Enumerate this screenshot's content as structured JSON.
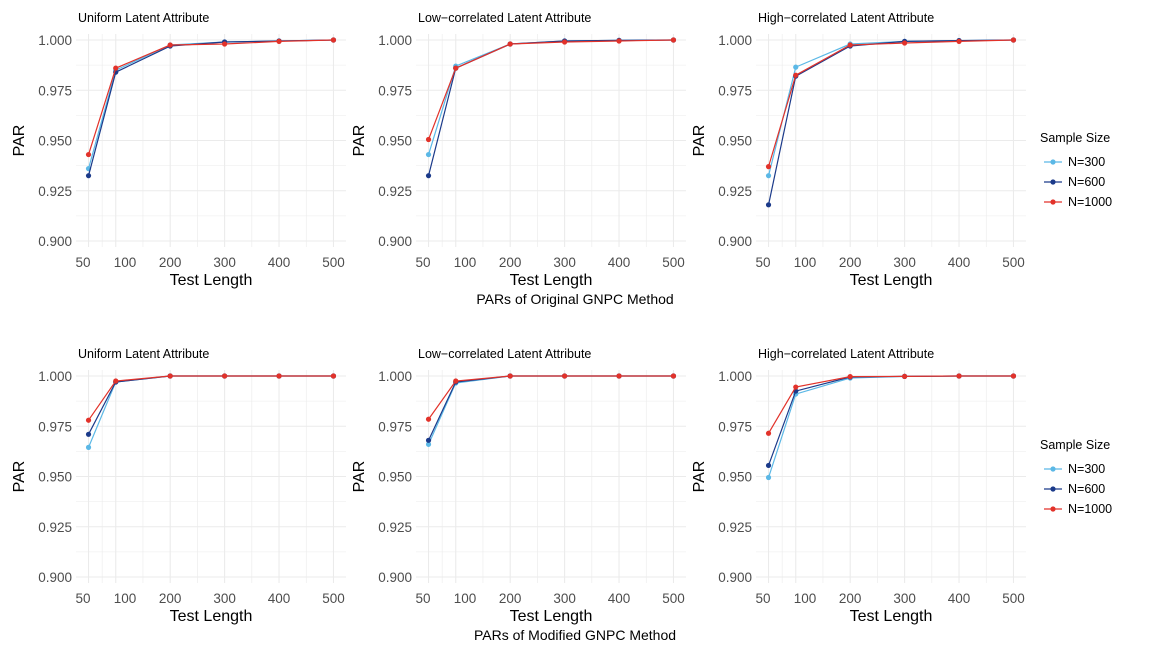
{
  "colors": {
    "N=300": "#5bb8e6",
    "N=600": "#1b3a8a",
    "N=1000": "#e2322a",
    "grid": "#ebebeb",
    "tick_text": "#4d4d4d",
    "text": "#000000"
  },
  "rows": [
    {
      "caption": "PARs of Original GNPC Method"
    },
    {
      "caption": "PARs of Modified GNPC Method"
    }
  ],
  "legend": {
    "title": "Sample Size",
    "entries": [
      "N=300",
      "N=600",
      "N=1000"
    ]
  },
  "chart_data": [
    {
      "type": "line",
      "title": "Uniform Latent Attribute",
      "xlabel": "Test Length",
      "ylabel": "PAR",
      "x": [
        50,
        100,
        200,
        300,
        400,
        500
      ],
      "xticks": [
        50,
        100,
        200,
        300,
        400,
        500
      ],
      "ylim": [
        0.9,
        1.0
      ],
      "yticks": [
        "0.900",
        "0.925",
        "0.950",
        "0.975",
        "1.000"
      ],
      "grid": true,
      "series": [
        {
          "name": "N=300",
          "values": [
            0.936,
            0.985,
            0.9975,
            0.999,
            0.9995,
            1.0
          ]
        },
        {
          "name": "N=600",
          "values": [
            0.9325,
            0.984,
            0.997,
            0.999,
            0.9995,
            1.0
          ]
        },
        {
          "name": "N=1000",
          "values": [
            0.943,
            0.986,
            0.9975,
            0.998,
            0.9993,
            1.0
          ]
        }
      ]
    },
    {
      "type": "line",
      "title": "Low−correlated Latent Attribute",
      "xlabel": "Test Length",
      "ylabel": "PAR",
      "x": [
        50,
        100,
        200,
        300,
        400,
        500
      ],
      "xticks": [
        50,
        100,
        200,
        300,
        400,
        500
      ],
      "ylim": [
        0.9,
        1.0
      ],
      "yticks": [
        "0.900",
        "0.925",
        "0.950",
        "0.975",
        "1.000"
      ],
      "grid": true,
      "series": [
        {
          "name": "N=300",
          "values": [
            0.943,
            0.987,
            0.998,
            0.9995,
            0.9998,
            1.0
          ]
        },
        {
          "name": "N=600",
          "values": [
            0.9325,
            0.986,
            0.998,
            0.9995,
            0.9998,
            1.0
          ]
        },
        {
          "name": "N=1000",
          "values": [
            0.9505,
            0.986,
            0.998,
            0.999,
            0.9995,
            1.0
          ]
        }
      ]
    },
    {
      "type": "line",
      "title": "High−correlated Latent Attribute",
      "xlabel": "Test Length",
      "ylabel": "PAR",
      "x": [
        50,
        100,
        200,
        300,
        400,
        500
      ],
      "xticks": [
        50,
        100,
        200,
        300,
        400,
        500
      ],
      "ylim": [
        0.9,
        1.0
      ],
      "yticks": [
        "0.900",
        "0.925",
        "0.950",
        "0.975",
        "1.000"
      ],
      "grid": true,
      "series": [
        {
          "name": "N=300",
          "values": [
            0.9325,
            0.9865,
            0.998,
            0.9993,
            0.9997,
            1.0
          ]
        },
        {
          "name": "N=600",
          "values": [
            0.918,
            0.982,
            0.997,
            0.9993,
            0.9997,
            1.0
          ]
        },
        {
          "name": "N=1000",
          "values": [
            0.937,
            0.9825,
            0.9975,
            0.9985,
            0.9993,
            1.0
          ]
        }
      ]
    },
    {
      "type": "line",
      "title": "Uniform Latent Attribute",
      "xlabel": "Test Length",
      "ylabel": "PAR",
      "x": [
        50,
        100,
        200,
        300,
        400,
        500
      ],
      "xticks": [
        50,
        100,
        200,
        300,
        400,
        500
      ],
      "ylim": [
        0.9,
        1.0
      ],
      "yticks": [
        "0.900",
        "0.925",
        "0.950",
        "0.975",
        "1.000"
      ],
      "grid": true,
      "series": [
        {
          "name": "N=300",
          "values": [
            0.9645,
            0.997,
            1.0,
            1.0,
            1.0,
            1.0
          ]
        },
        {
          "name": "N=600",
          "values": [
            0.971,
            0.997,
            1.0,
            1.0,
            1.0,
            1.0
          ]
        },
        {
          "name": "N=1000",
          "values": [
            0.978,
            0.9975,
            1.0,
            1.0,
            1.0,
            1.0
          ]
        }
      ]
    },
    {
      "type": "line",
      "title": "Low−correlated Latent Attribute",
      "xlabel": "Test Length",
      "ylabel": "PAR",
      "x": [
        50,
        100,
        200,
        300,
        400,
        500
      ],
      "xticks": [
        50,
        100,
        200,
        300,
        400,
        500
      ],
      "ylim": [
        0.9,
        1.0
      ],
      "yticks": [
        "0.900",
        "0.925",
        "0.950",
        "0.975",
        "1.000"
      ],
      "grid": true,
      "series": [
        {
          "name": "N=300",
          "values": [
            0.966,
            0.9965,
            1.0,
            1.0,
            1.0,
            1.0
          ]
        },
        {
          "name": "N=600",
          "values": [
            0.968,
            0.997,
            1.0,
            1.0,
            1.0,
            1.0
          ]
        },
        {
          "name": "N=1000",
          "values": [
            0.9785,
            0.9975,
            1.0,
            1.0,
            1.0,
            1.0
          ]
        }
      ]
    },
    {
      "type": "line",
      "title": "High−correlated Latent Attribute",
      "xlabel": "Test Length",
      "ylabel": "PAR",
      "x": [
        50,
        100,
        200,
        300,
        400,
        500
      ],
      "xticks": [
        50,
        100,
        200,
        300,
        400,
        500
      ],
      "ylim": [
        0.9,
        1.0
      ],
      "yticks": [
        "0.900",
        "0.925",
        "0.950",
        "0.975",
        "1.000"
      ],
      "grid": true,
      "series": [
        {
          "name": "N=300",
          "values": [
            0.9495,
            0.991,
            0.999,
            0.9998,
            1.0,
            1.0
          ]
        },
        {
          "name": "N=600",
          "values": [
            0.9555,
            0.9925,
            0.9995,
            0.9998,
            1.0,
            1.0
          ]
        },
        {
          "name": "N=1000",
          "values": [
            0.9715,
            0.9945,
            0.9997,
            0.9998,
            1.0,
            1.0
          ]
        }
      ]
    }
  ]
}
